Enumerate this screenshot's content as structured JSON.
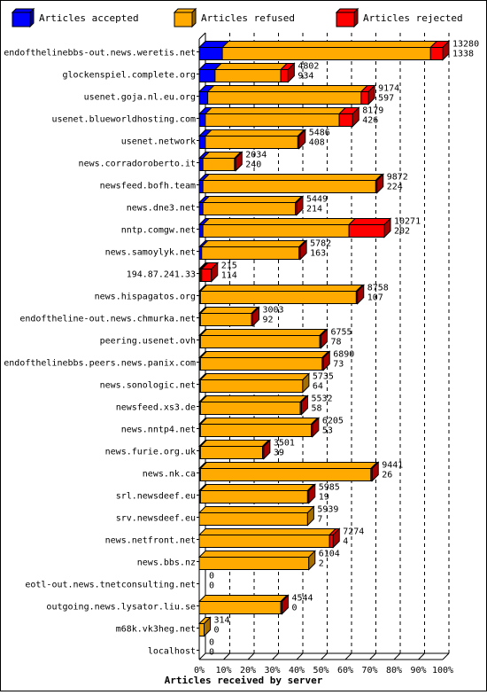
{
  "chart_data": {
    "type": "bar",
    "orientation": "horizontal",
    "stacked": true,
    "title": "Articles received by server",
    "xlim": [
      0,
      100
    ],
    "x_unit": "%",
    "x_ticks": [
      "0%",
      "10%",
      "20%",
      "30%",
      "40%",
      "50%",
      "60%",
      "70%",
      "80%",
      "90%",
      "100%"
    ],
    "grid": true,
    "legend_position": "top",
    "series": [
      {
        "name": "Articles accepted",
        "color": "#0000ff"
      },
      {
        "name": "Articles refused",
        "color": "#ffaa00"
      },
      {
        "name": "Articles rejected",
        "color": "#ff0000"
      }
    ],
    "rows": [
      {
        "server": "endofthelinebbs-out.news.weretis.net",
        "total": "13280",
        "accepted_count": "1338",
        "accepted_pct": 9.5,
        "refused_pct": 85.5,
        "rejected_pct": 5
      },
      {
        "server": "glockenspiel.complete.org",
        "total": "4802",
        "accepted_count": "934",
        "accepted_pct": 6.5,
        "refused_pct": 27,
        "rejected_pct": 3
      },
      {
        "server": "usenet.goja.nl.eu.org",
        "total": "9174",
        "accepted_count": "597",
        "accepted_pct": 3.5,
        "refused_pct": 63,
        "rejected_pct": 3
      },
      {
        "server": "usenet.blueworldhosting.com",
        "total": "8179",
        "accepted_count": "426",
        "accepted_pct": 2.5,
        "refused_pct": 55,
        "rejected_pct": 5.5
      },
      {
        "server": "usenet.network",
        "total": "5486",
        "accepted_count": "408",
        "accepted_pct": 2.5,
        "refused_pct": 38,
        "rejected_pct": 0.5
      },
      {
        "server": "news.corradoroberto.it",
        "total": "2034",
        "accepted_count": "240",
        "accepted_pct": 1.5,
        "refused_pct": 13,
        "rejected_pct": 0.5
      },
      {
        "server": "newsfeed.bofh.team",
        "total": "9872",
        "accepted_count": "224",
        "accepted_pct": 1.5,
        "refused_pct": 71,
        "rejected_pct": 0.5
      },
      {
        "server": "news.dne3.net",
        "total": "5449",
        "accepted_count": "214",
        "accepted_pct": 1.5,
        "refused_pct": 38,
        "rejected_pct": 0.5
      },
      {
        "server": "nntp.comgw.net",
        "total": "10271",
        "accepted_count": "202",
        "accepted_pct": 1.5,
        "refused_pct": 60,
        "rejected_pct": 14.5
      },
      {
        "server": "news.samoylyk.net",
        "total": "5782",
        "accepted_count": "163",
        "accepted_pct": 1,
        "refused_pct": 40,
        "rejected_pct": 0.5
      },
      {
        "server": "194.87.241.33",
        "total": "215",
        "accepted_count": "114",
        "accepted_pct": 0.5,
        "refused_pct": 0.5,
        "rejected_pct": 4
      },
      {
        "server": "news.hispagatos.org",
        "total": "8758",
        "accepted_count": "107",
        "accepted_pct": 0.5,
        "refused_pct": 64,
        "rejected_pct": 0.5
      },
      {
        "server": "endoftheline-out.news.chmurka.net",
        "total": "3003",
        "accepted_count": "92",
        "accepted_pct": 0.5,
        "refused_pct": 21,
        "rejected_pct": 0.5
      },
      {
        "server": "peering.usenet.ovh",
        "total": "6755",
        "accepted_count": "78",
        "accepted_pct": 0.5,
        "refused_pct": 49,
        "rejected_pct": 0.5
      },
      {
        "server": "endofthelinebbs.peers.news.panix.com",
        "total": "6890",
        "accepted_count": "73",
        "accepted_pct": 0.5,
        "refused_pct": 50,
        "rejected_pct": 0.5
      },
      {
        "server": "news.sonologic.net",
        "total": "5735",
        "accepted_count": "64",
        "accepted_pct": 0.5,
        "refused_pct": 42,
        "rejected_pct": 0
      },
      {
        "server": "newsfeed.xs3.de",
        "total": "5532",
        "accepted_count": "58",
        "accepted_pct": 0.5,
        "refused_pct": 41,
        "rejected_pct": 0.5
      },
      {
        "server": "news.nntp4.net",
        "total": "6205",
        "accepted_count": "53",
        "accepted_pct": 0.5,
        "refused_pct": 45.5,
        "rejected_pct": 0.5
      },
      {
        "server": "news.furie.org.uk",
        "total": "3501",
        "accepted_count": "39",
        "accepted_pct": 0.5,
        "refused_pct": 25.5,
        "rejected_pct": 0.5
      },
      {
        "server": "news.nk.ca",
        "total": "9441",
        "accepted_count": "26",
        "accepted_pct": 0.5,
        "refused_pct": 70,
        "rejected_pct": 0.5
      },
      {
        "server": "srl.newsdeef.eu",
        "total": "5985",
        "accepted_count": "19",
        "accepted_pct": 0.5,
        "refused_pct": 44,
        "rejected_pct": 0.5
      },
      {
        "server": "srv.newsdeef.eu",
        "total": "5939",
        "accepted_count": "7",
        "accepted_pct": 0,
        "refused_pct": 44.5,
        "rejected_pct": 0
      },
      {
        "server": "news.netfront.net",
        "total": "7274",
        "accepted_count": "4",
        "accepted_pct": 0,
        "refused_pct": 53.5,
        "rejected_pct": 1.5
      },
      {
        "server": "news.bbs.nz",
        "total": "6104",
        "accepted_count": "2",
        "accepted_pct": 0,
        "refused_pct": 45,
        "rejected_pct": 0
      },
      {
        "server": "eotl-out.news.tnetconsulting.net",
        "total": "0",
        "accepted_count": "0",
        "accepted_pct": 0,
        "refused_pct": 0,
        "rejected_pct": 0
      },
      {
        "server": "outgoing.news.lysator.liu.se",
        "total": "4544",
        "accepted_count": "0",
        "accepted_pct": 0,
        "refused_pct": 33.5,
        "rejected_pct": 0.5
      },
      {
        "server": "m68k.vk3heg.net",
        "total": "314",
        "accepted_count": "0",
        "accepted_pct": 0,
        "refused_pct": 2,
        "rejected_pct": 0
      },
      {
        "server": "localhost",
        "total": "0",
        "accepted_count": "0",
        "accepted_pct": 0,
        "refused_pct": 0,
        "rejected_pct": 0
      }
    ]
  }
}
